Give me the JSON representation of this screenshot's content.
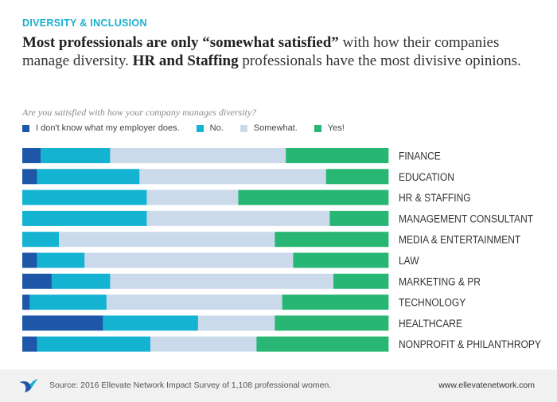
{
  "header": {
    "kicker": "DIVERSITY & INCLUSION",
    "headline_parts": [
      {
        "text": "Most professionals are only “somewhat satisfied”",
        "bold": true
      },
      {
        "text": " with how their companies manage diversity. ",
        "bold": false
      },
      {
        "text": "HR and Staffing",
        "bold": true
      },
      {
        "text": " professionals have the most divisive opinions.",
        "bold": false
      }
    ],
    "question": "Are you satisfied with how your company manages diversity?"
  },
  "legend": [
    {
      "label": "I don't know what my employer does.",
      "color": "#1e57a8"
    },
    {
      "label": "No.",
      "color": "#14b3d2"
    },
    {
      "label": "Somewhat.",
      "color": "#cbdaeb"
    },
    {
      "label": "Yes!",
      "color": "#28b674"
    }
  ],
  "chart_data": {
    "type": "bar",
    "orientation": "horizontal",
    "stacked": true,
    "normalized_to": 100,
    "unit": "%",
    "title": "Are you satisfied with how your company manages diversity?",
    "categories": [
      "FINANCE",
      "EDUCATION",
      "HR & STAFFING",
      "MANAGEMENT CONSULTANT",
      "MEDIA & ENTERTAINMENT",
      "LAW",
      "MARKETING & PR",
      "TECHNOLOGY",
      "HEALTHCARE",
      "NONPROFIT & PHILANTHROPY"
    ],
    "series": [
      {
        "name": "I don't know what my employer does.",
        "color": "#1e57a8",
        "values": [
          5,
          4,
          0,
          0,
          0,
          4,
          8,
          2,
          22,
          4
        ]
      },
      {
        "name": "No.",
        "color": "#14b3d2",
        "values": [
          19,
          28,
          34,
          34,
          10,
          13,
          16,
          21,
          26,
          31
        ]
      },
      {
        "name": "Somewhat.",
        "color": "#cbdaeb",
        "values": [
          48,
          51,
          25,
          50,
          59,
          57,
          61,
          48,
          21,
          29
        ]
      },
      {
        "name": "Yes!",
        "color": "#28b674",
        "values": [
          28,
          17,
          41,
          16,
          31,
          26,
          15,
          29,
          31,
          36
        ]
      }
    ],
    "xlabel": "",
    "ylabel": "",
    "xlim": [
      0,
      100
    ],
    "grid": false
  },
  "footer": {
    "source": "Source: 2016 Ellevate Network Impact Survey of 1,108 professional women.",
    "url": "www.ellevatenetwork.com"
  }
}
